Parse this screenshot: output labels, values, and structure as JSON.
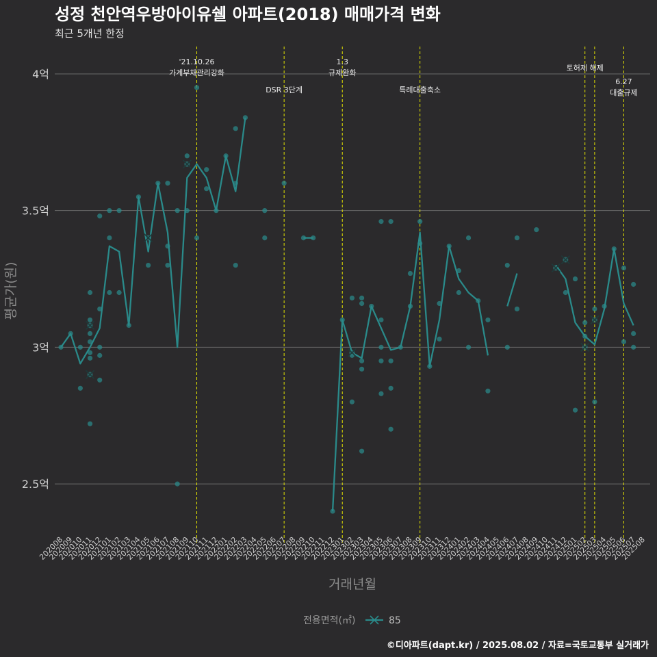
{
  "chart_data": {
    "type": "line",
    "title": "성정 천안역우방아이유쉘 아파트(2018) 매매가격 변화",
    "subtitle": "최근 5개년 한정",
    "xlabel": "거래년월",
    "ylabel": "평균가(원)",
    "caption": "©디아파트(dapt.kr) / 2025.08.02 / 자료=국토교통부 실거래가",
    "legend": {
      "title": "전용면적(㎡)",
      "entries": [
        "85"
      ],
      "position": "bottom"
    },
    "colors": {
      "series": "#2a8a8a",
      "event_line": "#e6e600",
      "grid": "#6a6a6a",
      "background": "#2b2a2c"
    },
    "grid": true,
    "ylim": [
      2.33,
      4.1
    ],
    "yticks": [
      {
        "value": 2.5,
        "label": "2.5억"
      },
      {
        "value": 3.0,
        "label": "3억"
      },
      {
        "value": 3.5,
        "label": "3.5억"
      },
      {
        "value": 4.0,
        "label": "4억"
      }
    ],
    "categories": [
      "202008",
      "202009",
      "202010",
      "202011",
      "202012",
      "202101",
      "202102",
      "202103",
      "202104",
      "202105",
      "202106",
      "202107",
      "202108",
      "202109",
      "202110",
      "202111",
      "202112",
      "202201",
      "202202",
      "202203",
      "202204",
      "202205",
      "202206",
      "202207",
      "202208",
      "202209",
      "202210",
      "202211",
      "202212",
      "202301",
      "202302",
      "202303",
      "202304",
      "202305",
      "202306",
      "202307",
      "202308",
      "202309",
      "202310",
      "202311",
      "202312",
      "202401",
      "202402",
      "202403",
      "202404",
      "202405",
      "202406",
      "202407",
      "202408",
      "202409",
      "202410",
      "202411",
      "202412",
      "202501",
      "202502",
      "202503",
      "202504",
      "202505",
      "202506",
      "202507",
      "202508"
    ],
    "events": [
      {
        "x": "202110",
        "lines": [
          "'21.10.26",
          "가계부채관리강화"
        ],
        "row": 1
      },
      {
        "x": "202207",
        "lines": [
          "DSR 3단계"
        ],
        "row": 2
      },
      {
        "x": "202301",
        "lines": [
          "1.3",
          "규제완화"
        ],
        "row": 1
      },
      {
        "x": "202309",
        "lines": [
          "특례대출축소"
        ],
        "row": 2
      },
      {
        "x": "202502",
        "lines": [
          "토허제 해제"
        ],
        "row": 1
      },
      {
        "x": "202503",
        "lines": [],
        "row": 1
      },
      {
        "x": "202506",
        "lines": [
          "6.27",
          "대출규제"
        ],
        "row": 2
      }
    ],
    "series": [
      {
        "name": "85",
        "line": [
          [
            0,
            3.0
          ],
          [
            1,
            3.05
          ],
          [
            2,
            2.94
          ],
          [
            3,
            3.0
          ],
          [
            4,
            3.07
          ],
          [
            5,
            3.37
          ],
          [
            6,
            3.35
          ],
          [
            7,
            3.08
          ],
          [
            8,
            3.55
          ],
          [
            9,
            3.35
          ],
          [
            10,
            3.6
          ],
          [
            11,
            3.42
          ],
          [
            12,
            3.0
          ],
          [
            13,
            3.62
          ],
          [
            14,
            3.67
          ],
          [
            15,
            3.62
          ],
          [
            16,
            3.5
          ],
          [
            17,
            3.7
          ],
          [
            18,
            3.57
          ],
          [
            19,
            3.84
          ],
          null,
          [
            25,
            3.4
          ],
          [
            26,
            3.4
          ],
          null,
          [
            28,
            2.4
          ],
          [
            29,
            3.1
          ],
          [
            30,
            2.98
          ],
          [
            31,
            2.96
          ],
          [
            32,
            3.15
          ],
          [
            33,
            3.07
          ],
          [
            34,
            2.99
          ],
          [
            35,
            3.0
          ],
          [
            36,
            3.15
          ],
          [
            37,
            3.42
          ],
          [
            38,
            2.93
          ],
          [
            39,
            3.1
          ],
          [
            40,
            3.37
          ],
          [
            41,
            3.25
          ],
          [
            42,
            3.2
          ],
          [
            43,
            3.17
          ],
          [
            44,
            2.97
          ],
          null,
          [
            46,
            3.15
          ],
          [
            47,
            3.27
          ],
          null,
          [
            51,
            3.3
          ],
          [
            52,
            3.25
          ],
          [
            53,
            3.09
          ],
          [
            54,
            3.04
          ],
          [
            55,
            3.01
          ],
          [
            56,
            3.14
          ],
          [
            57,
            3.36
          ],
          [
            58,
            3.16
          ],
          [
            59,
            3.08
          ]
        ],
        "points": [
          [
            0,
            3.0
          ],
          [
            1,
            3.05
          ],
          [
            2,
            3.0
          ],
          [
            2,
            2.85
          ],
          [
            3,
            3.2
          ],
          [
            3,
            3.1
          ],
          [
            3,
            3.05
          ],
          [
            3,
            3.02
          ],
          [
            3,
            2.98
          ],
          [
            3,
            2.96
          ],
          [
            3,
            2.72
          ],
          [
            4,
            3.48
          ],
          [
            4,
            3.14
          ],
          [
            4,
            3.0
          ],
          [
            4,
            2.97
          ],
          [
            4,
            2.88
          ],
          [
            5,
            3.5
          ],
          [
            5,
            3.4
          ],
          [
            5,
            3.2
          ],
          [
            6,
            3.5
          ],
          [
            6,
            3.2
          ],
          [
            7,
            3.08
          ],
          [
            8,
            3.55
          ],
          [
            9,
            3.3
          ],
          [
            10,
            3.6
          ],
          [
            11,
            3.6
          ],
          [
            11,
            3.37
          ],
          [
            11,
            3.3
          ],
          [
            12,
            3.5
          ],
          [
            12,
            2.5
          ],
          [
            13,
            3.7
          ],
          [
            13,
            3.5
          ],
          [
            14,
            3.95
          ],
          [
            14,
            3.4
          ],
          [
            15,
            3.65
          ],
          [
            15,
            3.58
          ],
          [
            16,
            3.5
          ],
          [
            17,
            3.7
          ],
          [
            18,
            3.8
          ],
          [
            18,
            3.6
          ],
          [
            18,
            3.3
          ],
          [
            19,
            3.84
          ],
          [
            21,
            3.5
          ],
          [
            21,
            3.4
          ],
          [
            23,
            3.6
          ],
          [
            25,
            3.4
          ],
          [
            26,
            3.4
          ],
          [
            28,
            2.4
          ],
          [
            29,
            3.1
          ],
          [
            30,
            3.18
          ],
          [
            30,
            2.97
          ],
          [
            30,
            2.8
          ],
          [
            31,
            3.18
          ],
          [
            31,
            3.16
          ],
          [
            31,
            2.95
          ],
          [
            31,
            2.92
          ],
          [
            31,
            2.62
          ],
          [
            32,
            3.15
          ],
          [
            33,
            3.46
          ],
          [
            33,
            3.1
          ],
          [
            33,
            3.0
          ],
          [
            33,
            2.95
          ],
          [
            33,
            2.83
          ],
          [
            34,
            3.46
          ],
          [
            34,
            2.95
          ],
          [
            34,
            2.85
          ],
          [
            34,
            2.7
          ],
          [
            35,
            3.0
          ],
          [
            36,
            3.27
          ],
          [
            36,
            3.15
          ],
          [
            37,
            3.46
          ],
          [
            37,
            3.38
          ],
          [
            38,
            2.93
          ],
          [
            39,
            3.16
          ],
          [
            39,
            3.03
          ],
          [
            40,
            3.37
          ],
          [
            41,
            3.28
          ],
          [
            41,
            3.2
          ],
          [
            42,
            3.4
          ],
          [
            42,
            3.0
          ],
          [
            43,
            3.17
          ],
          [
            44,
            3.1
          ],
          [
            44,
            2.84
          ],
          [
            46,
            3.3
          ],
          [
            46,
            3.0
          ],
          [
            47,
            3.4
          ],
          [
            47,
            3.14
          ],
          [
            49,
            3.43
          ],
          [
            52,
            3.2
          ],
          [
            53,
            3.25
          ],
          [
            53,
            2.77
          ],
          [
            54,
            3.09
          ],
          [
            54,
            3.04
          ],
          [
            55,
            3.14
          ],
          [
            55,
            2.8
          ],
          [
            56,
            3.15
          ],
          [
            57,
            3.36
          ],
          [
            58,
            3.29
          ],
          [
            58,
            3.02
          ],
          [
            59,
            3.23
          ],
          [
            59,
            3.05
          ],
          [
            59,
            3.0
          ]
        ],
        "crosses": [
          [
            3,
            3.08
          ],
          [
            3,
            2.9
          ],
          [
            9,
            3.4
          ],
          [
            13,
            3.67
          ],
          [
            30,
            2.98
          ],
          [
            51,
            3.29
          ],
          [
            52,
            3.32
          ],
          [
            54,
            3.0
          ],
          [
            55,
            3.1
          ]
        ]
      }
    ]
  }
}
